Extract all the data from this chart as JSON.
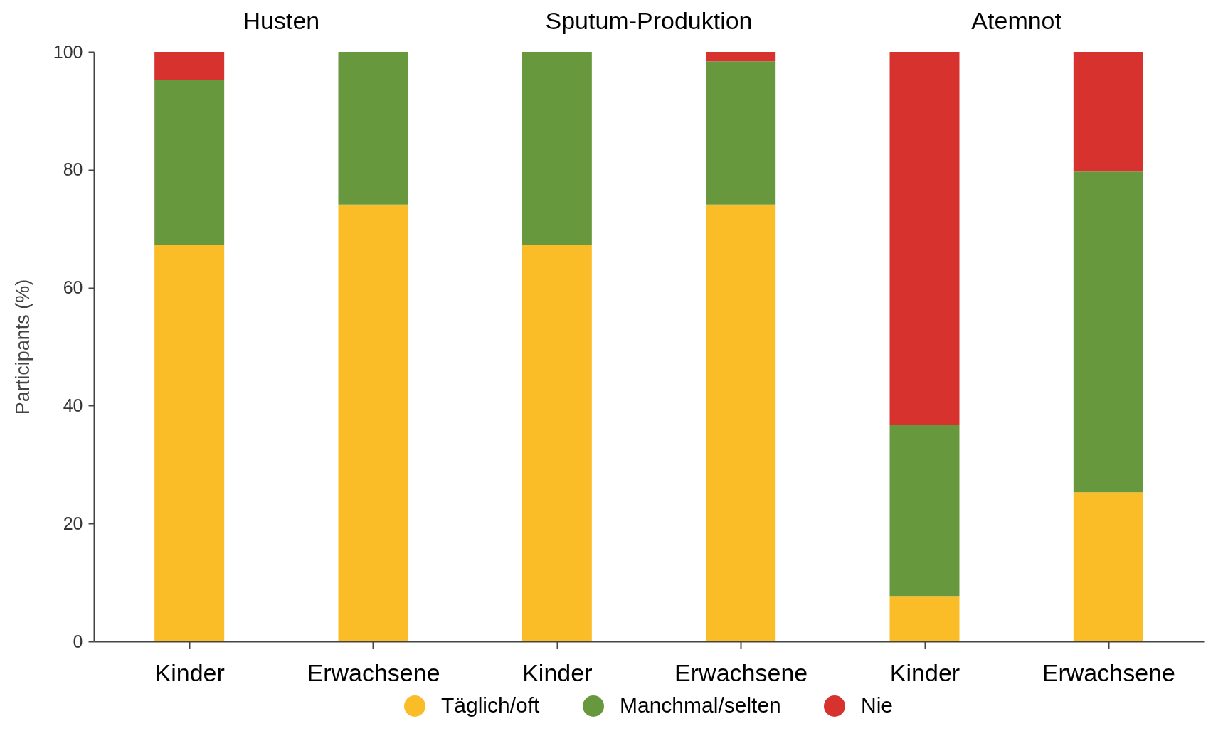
{
  "chart_data": {
    "type": "bar",
    "stacked": true,
    "categories": [
      "Kinder",
      "Erwachsene",
      "Kinder",
      "Erwachsene",
      "Kinder",
      "Erwachsene"
    ],
    "series": [
      {
        "name": "Täglich/oft",
        "color": "#fbbd27",
        "values": [
          67.3,
          74.1,
          67.3,
          74.1,
          7.7,
          25.3
        ]
      },
      {
        "name": "Manchmal/selten",
        "color": "#67983e",
        "values": [
          28.0,
          25.9,
          32.7,
          24.3,
          29.0,
          54.4
        ]
      },
      {
        "name": "Nie",
        "color": "#d7322e",
        "values": [
          4.7,
          0,
          0,
          1.6,
          63.3,
          20.3
        ]
      }
    ],
    "ylabel": "Participants (%)",
    "ylim": [
      0,
      100
    ],
    "yticks": [
      0,
      20,
      40,
      60,
      80,
      100
    ],
    "annotations": [
      "Husten",
      "Sputum-Produktion",
      "Atemnot"
    ],
    "legend": "bottom"
  }
}
